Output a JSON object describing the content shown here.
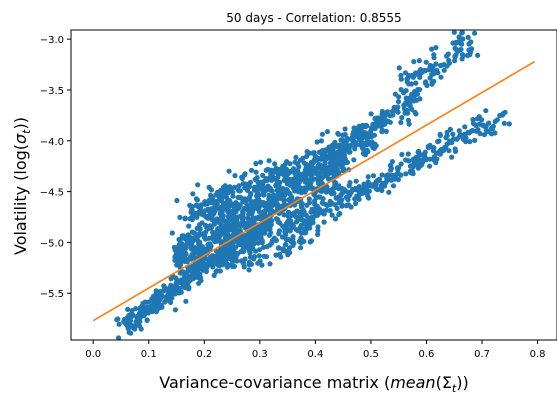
{
  "chart_data": {
    "type": "scatter",
    "title": "50 days - Correlation: 0.8555",
    "xlabel": "Variance-covariance matrix (mean(Σt))",
    "xlabel_parts": {
      "prefix": "Variance-covariance matrix (",
      "func": "mean",
      "open": "(",
      "sym": "Σ",
      "sub": "t",
      "close": "))"
    },
    "ylabel": "Volatility (log(σt))",
    "ylabel_parts": {
      "prefix": "Volatility (log(",
      "sym": "σ",
      "sub": "t",
      "close": "))"
    },
    "xlim": [
      -0.04,
      0.835
    ],
    "ylim": [
      -5.96,
      -2.91
    ],
    "xticks": [
      0.0,
      0.1,
      0.2,
      0.3,
      0.4,
      0.5,
      0.6,
      0.7,
      0.8
    ],
    "xtick_labels": [
      "0.0",
      "0.1",
      "0.2",
      "0.3",
      "0.4",
      "0.5",
      "0.6",
      "0.7",
      "0.8"
    ],
    "yticks": [
      -5.5,
      -5.0,
      -4.5,
      -4.0,
      -3.5,
      -3.0
    ],
    "ytick_labels": [
      "−5.5",
      "−5.0",
      "−4.5",
      "−4.0",
      "−3.5",
      "−3.0"
    ],
    "grid": false,
    "colors": {
      "scatter": "#1f77b4",
      "fit": "#ff7f0e"
    },
    "fit_line": {
      "x": [
        0.0,
        0.795
      ],
      "y": [
        -5.77,
        -3.22
      ]
    },
    "point_count": 2200,
    "clusters": [
      {
        "x": [
          0.055,
          0.32
        ],
        "y0": -5.82,
        "y1": -4.78,
        "spread": 0.05,
        "frac": 0.2
      },
      {
        "x": [
          0.15,
          0.45
        ],
        "y0": -5.15,
        "y1": -4.25,
        "spread": 0.14,
        "frac": 0.36
      },
      {
        "x": [
          0.17,
          0.36
        ],
        "y0": -4.75,
        "y1": -4.3,
        "spread": 0.1,
        "frac": 0.1
      },
      {
        "x": [
          0.36,
          0.5
        ],
        "y0": -4.35,
        "y1": -3.95,
        "spread": 0.08,
        "frac": 0.07
      },
      {
        "x": [
          0.45,
          0.58
        ],
        "y0": -4.0,
        "y1": -3.65,
        "spread": 0.06,
        "frac": 0.05
      },
      {
        "x": [
          0.55,
          0.68
        ],
        "y0": -3.55,
        "y1": -3.0,
        "spread": 0.09,
        "frac": 0.05
      },
      {
        "x": [
          0.34,
          0.74
        ],
        "y0": -4.9,
        "y1": -3.75,
        "spread": 0.06,
        "frac": 0.13
      },
      {
        "x": [
          0.25,
          0.4
        ],
        "y0": -5.2,
        "y1": -4.9,
        "spread": 0.07,
        "frac": 0.04
      }
    ]
  }
}
